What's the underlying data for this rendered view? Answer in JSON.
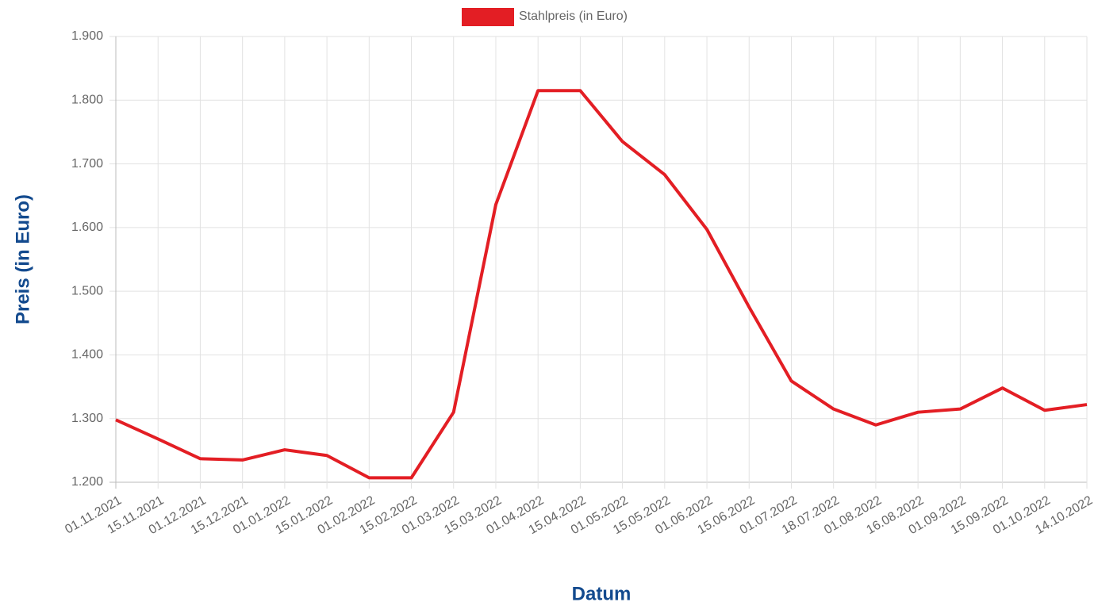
{
  "chart_data": {
    "type": "line",
    "axis_labels": {
      "y": "Preis (in Euro)",
      "x": "Datum"
    },
    "categories": [
      "01.11.2021",
      "15.11.2021",
      "01.12.2021",
      "15.12.2021",
      "01.01.2022",
      "15.01.2022",
      "01.02.2022",
      "15.02.2022",
      "01.03.2022",
      "15.03.2022",
      "01.04.2022",
      "15.04.2022",
      "01.05.2022",
      "15.05.2022",
      "01.06.2022",
      "15.06.2022",
      "01.07.2022",
      "18.07.2022",
      "01.08.2022",
      "16.08.2022",
      "01.09.2022",
      "15.09.2022",
      "01.10.2022",
      "14.10.2022"
    ],
    "series": [
      {
        "name": "Stahlpreis (in Euro)",
        "color": "#e31e24",
        "values": [
          1298,
          1268,
          1237,
          1235,
          1251,
          1242,
          1207,
          1207,
          1310,
          1636,
          1815,
          1815,
          1735,
          1683,
          1597,
          1475,
          1359,
          1315,
          1290,
          1310,
          1315,
          1348,
          1313,
          1322
        ]
      }
    ],
    "ylim": [
      1200,
      1900
    ],
    "yticks": [
      {
        "value": 1200,
        "label": "1.200"
      },
      {
        "value": 1300,
        "label": "1.300"
      },
      {
        "value": 1400,
        "label": "1.400"
      },
      {
        "value": 1500,
        "label": "1.500"
      },
      {
        "value": 1600,
        "label": "1.600"
      },
      {
        "value": 1700,
        "label": "1.700"
      },
      {
        "value": 1800,
        "label": "1.800"
      },
      {
        "value": 1900,
        "label": "1.900"
      }
    ],
    "grid": true,
    "legend": "top"
  }
}
